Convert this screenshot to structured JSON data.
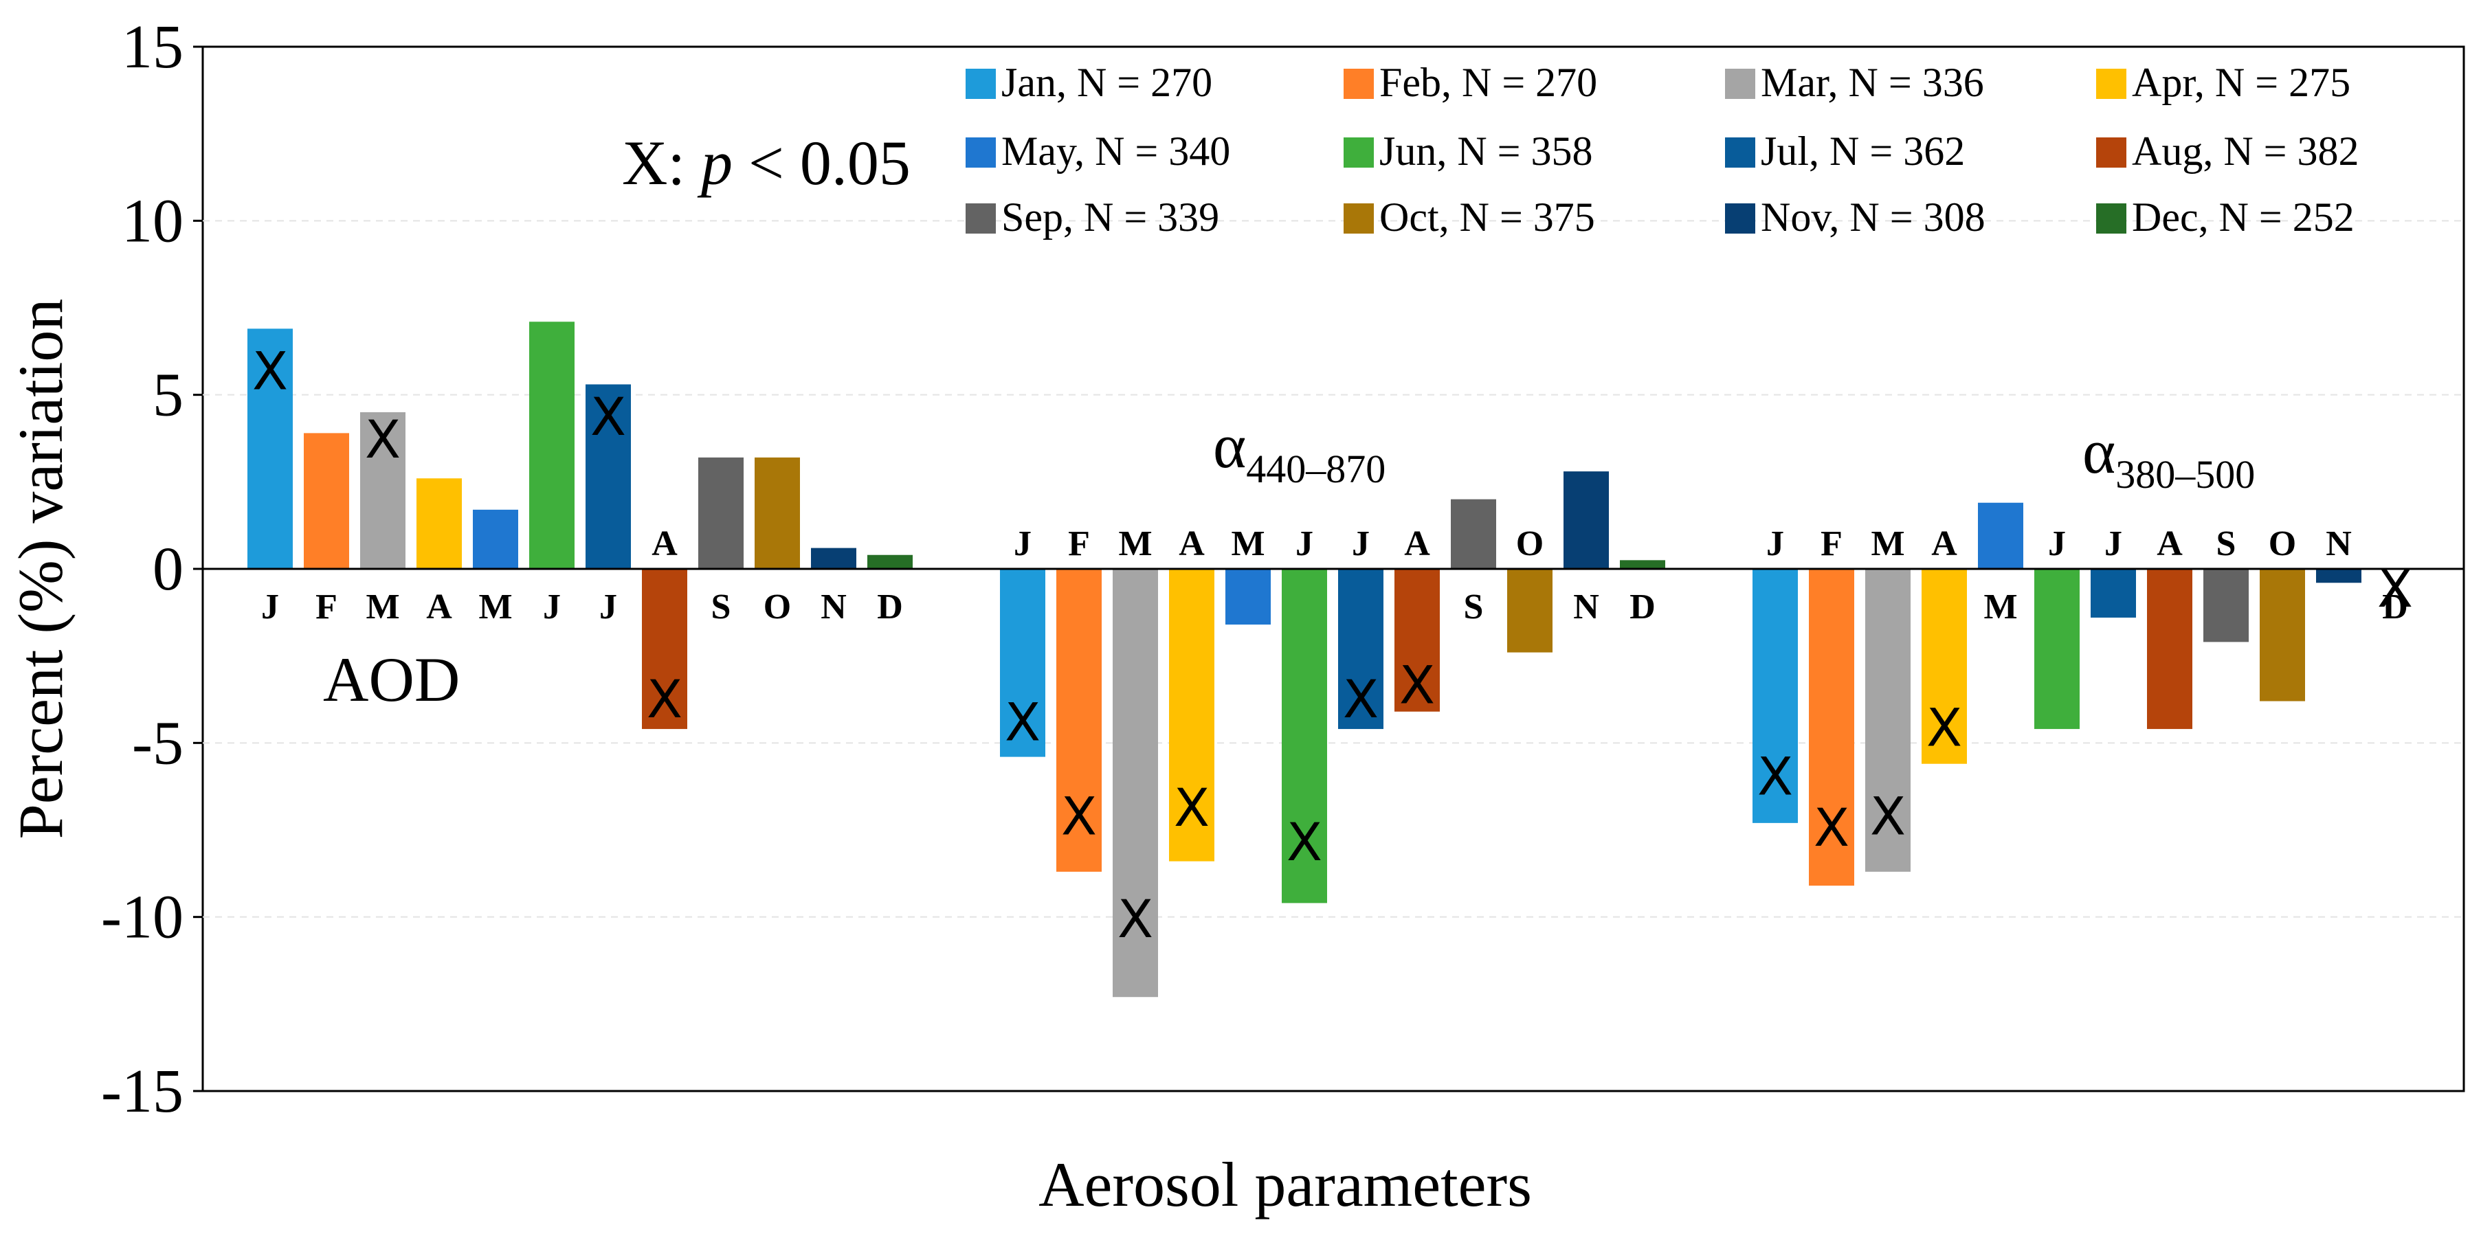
{
  "chart_data": {
    "type": "bar",
    "xlabel": "Aerosol parameters",
    "ylabel": "Percent (%) variation",
    "ylim": [
      -15,
      15
    ],
    "yticks": [
      15,
      10,
      5,
      0,
      -5,
      -10,
      -15
    ],
    "ytick_labels": [
      "15",
      "10",
      "5",
      "0",
      "-5",
      "-10",
      "-15"
    ],
    "grid": "horizontal dashed",
    "significance_note": {
      "symbol": "X",
      "label": "X: ",
      "p": "p",
      "rest": " < 0.05"
    },
    "month_letters": [
      "J",
      "F",
      "M",
      "A",
      "M",
      "J",
      "J",
      "A",
      "S",
      "O",
      "N",
      "D"
    ],
    "series": [
      {
        "name": "Jan",
        "legend": "Jan, N = 270",
        "color": "#1E9BDA"
      },
      {
        "name": "Feb",
        "legend": "Feb, N = 270",
        "color": "#FF7F27"
      },
      {
        "name": "Mar",
        "legend": "Mar, N = 336",
        "color": "#A5A5A5"
      },
      {
        "name": "Apr",
        "legend": "Apr, N = 275",
        "color": "#FFC000"
      },
      {
        "name": "May",
        "legend": "May, N = 340",
        "color": "#1F77D0"
      },
      {
        "name": "Jun",
        "legend": "Jun, N = 358",
        "color": "#3FAF3C"
      },
      {
        "name": "Jul",
        "legend": "Jul, N = 362",
        "color": "#085C9A"
      },
      {
        "name": "Aug",
        "legend": "Aug, N = 382",
        "color": "#B5440B"
      },
      {
        "name": "Sep",
        "legend": "Sep, N = 339",
        "color": "#636363"
      },
      {
        "name": "Oct",
        "legend": "Oct, N = 375",
        "color": "#A97708"
      },
      {
        "name": "Nov",
        "legend": "Nov, N = 308",
        "color": "#073F73"
      },
      {
        "name": "Dec",
        "legend": "Dec, N = 252",
        "color": "#266E26"
      }
    ],
    "groups": [
      {
        "name": "AOD",
        "label": "AOD",
        "values": [
          6.9,
          3.9,
          4.5,
          2.6,
          1.7,
          7.1,
          5.3,
          -4.6,
          3.2,
          3.2,
          0.6,
          0.4
        ],
        "significant": [
          true,
          false,
          true,
          false,
          false,
          false,
          true,
          true,
          false,
          false,
          false,
          false
        ]
      },
      {
        "name": "alpha_440_870",
        "label": "α",
        "label_sub": "440–870",
        "values": [
          -5.4,
          -8.7,
          -12.3,
          -8.4,
          -1.6,
          -9.6,
          -4.6,
          -4.1,
          2.0,
          -2.4,
          2.8,
          0.25
        ],
        "significant": [
          true,
          true,
          true,
          true,
          false,
          true,
          true,
          true,
          false,
          false,
          false,
          false
        ]
      },
      {
        "name": "alpha_380_500",
        "label": "α",
        "label_sub": "380–500",
        "values": [
          -7.3,
          -9.1,
          -8.7,
          -5.6,
          1.9,
          -4.6,
          -1.4,
          -4.6,
          -2.1,
          -3.8,
          -0.4,
          0.0
        ],
        "significant": [
          true,
          true,
          true,
          true,
          false,
          false,
          false,
          false,
          false,
          false,
          false,
          true
        ]
      }
    ]
  }
}
